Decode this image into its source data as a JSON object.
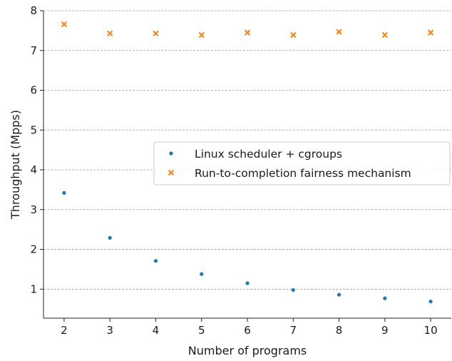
{
  "chart_data": {
    "type": "scatter",
    "title": "",
    "xlabel": "Number of programs",
    "ylabel": "Throughput (Mpps)",
    "x": [
      2,
      3,
      4,
      5,
      6,
      7,
      8,
      9,
      10
    ],
    "xlim": [
      1.55,
      10.45
    ],
    "ylim": [
      0.27,
      8.0
    ],
    "xticks": [
      2,
      3,
      4,
      5,
      6,
      7,
      8,
      9,
      10
    ],
    "yticks": [
      1,
      2,
      3,
      4,
      5,
      6,
      7,
      8
    ],
    "grid": "horizontal-dashed",
    "legend_position": "center-right",
    "series": [
      {
        "name": "Linux scheduler + cgroups",
        "marker": "dot",
        "color": "#1f77b4",
        "values": [
          3.42,
          2.29,
          1.71,
          1.38,
          1.15,
          0.98,
          0.86,
          0.77,
          0.69
        ]
      },
      {
        "name": "Run-to-completion fairness mechanism",
        "marker": "x",
        "color": "#ff7f0e",
        "values": [
          7.66,
          7.43,
          7.43,
          7.39,
          7.45,
          7.39,
          7.47,
          7.39,
          7.45
        ]
      }
    ]
  }
}
